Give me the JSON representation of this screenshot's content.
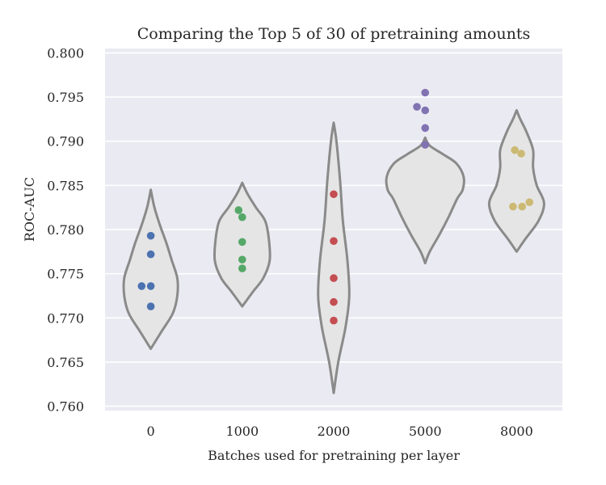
{
  "chart_data": {
    "type": "violin",
    "title": "Comparing the Top 5 of 30 of pretraining amounts",
    "xlabel": "Batches used for pretraining per layer",
    "ylabel": "ROC-AUC",
    "categories": [
      "0",
      "1000",
      "2000",
      "5000",
      "8000"
    ],
    "ylim": [
      0.7595,
      0.8005
    ],
    "yticks": [
      "0.760",
      "0.765",
      "0.770",
      "0.775",
      "0.780",
      "0.785",
      "0.790",
      "0.795",
      "0.800"
    ],
    "grid": true,
    "series": [
      {
        "category": "0",
        "color": "#4c72b0",
        "points": [
          0.7793,
          0.7772,
          0.7736,
          0.7736,
          0.7713
        ],
        "jitter": [
          0,
          0,
          -0.1,
          0,
          0
        ],
        "shape": [
          [
            0.7665,
            0
          ],
          [
            0.7685,
            0.12
          ],
          [
            0.7705,
            0.24
          ],
          [
            0.7725,
            0.29
          ],
          [
            0.7745,
            0.29
          ],
          [
            0.7765,
            0.23
          ],
          [
            0.7785,
            0.17
          ],
          [
            0.7805,
            0.1
          ],
          [
            0.7825,
            0.04
          ],
          [
            0.7845,
            0
          ]
        ]
      },
      {
        "category": "1000",
        "color": "#55a868",
        "points": [
          0.7822,
          0.7814,
          0.7786,
          0.7766,
          0.7756
        ],
        "jitter": [
          -0.04,
          0,
          0,
          0,
          0
        ],
        "shape": [
          [
            0.7713,
            0
          ],
          [
            0.773,
            0.12
          ],
          [
            0.7745,
            0.23
          ],
          [
            0.7765,
            0.3
          ],
          [
            0.779,
            0.29
          ],
          [
            0.781,
            0.25
          ],
          [
            0.7825,
            0.15
          ],
          [
            0.784,
            0.06
          ],
          [
            0.7853,
            0
          ]
        ]
      },
      {
        "category": "2000",
        "color": "#c44e52",
        "points": [
          0.784,
          0.7787,
          0.7745,
          0.7718,
          0.7697
        ],
        "jitter": [
          0,
          0,
          0,
          0,
          0
        ],
        "shape": [
          [
            0.7615,
            0
          ],
          [
            0.765,
            0.05
          ],
          [
            0.769,
            0.13
          ],
          [
            0.7725,
            0.17
          ],
          [
            0.7765,
            0.15
          ],
          [
            0.781,
            0.1
          ],
          [
            0.7855,
            0.07
          ],
          [
            0.79,
            0.03
          ],
          [
            0.7921,
            0
          ]
        ]
      },
      {
        "category": "5000",
        "color": "#8172b2",
        "points": [
          0.7955,
          0.7939,
          0.7935,
          0.7915,
          0.7896
        ],
        "jitter": [
          0,
          -0.09,
          0,
          0,
          0
        ],
        "shape": [
          [
            0.7762,
            0
          ],
          [
            0.7775,
            0.05
          ],
          [
            0.7795,
            0.16
          ],
          [
            0.7815,
            0.26
          ],
          [
            0.7835,
            0.35
          ],
          [
            0.7845,
            0.41
          ],
          [
            0.786,
            0.42
          ],
          [
            0.7875,
            0.34
          ],
          [
            0.7885,
            0.2
          ],
          [
            0.7895,
            0.05
          ],
          [
            0.7904,
            0
          ]
        ]
      },
      {
        "category": "8000",
        "color": "#ccb974",
        "points": [
          0.789,
          0.7886,
          0.7831,
          0.7826,
          0.7826
        ],
        "jitter": [
          -0.02,
          0.05,
          0.14,
          -0.04,
          0.06
        ],
        "shape": [
          [
            0.7775,
            0
          ],
          [
            0.779,
            0.1
          ],
          [
            0.781,
            0.24
          ],
          [
            0.783,
            0.3
          ],
          [
            0.785,
            0.22
          ],
          [
            0.787,
            0.18
          ],
          [
            0.789,
            0.18
          ],
          [
            0.791,
            0.11
          ],
          [
            0.7925,
            0.04
          ],
          [
            0.7935,
            0
          ]
        ]
      }
    ]
  }
}
